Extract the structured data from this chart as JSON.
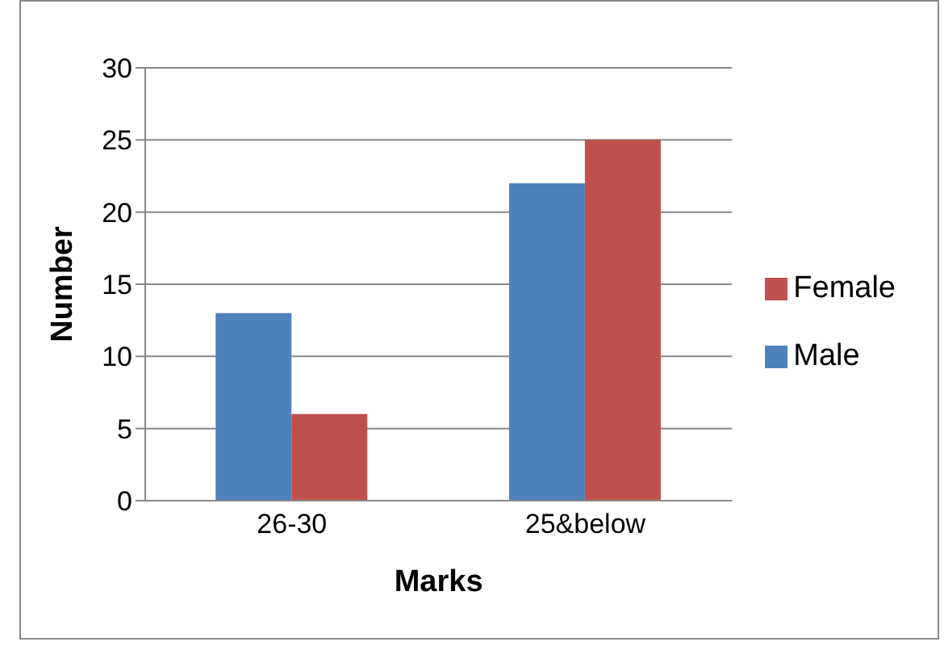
{
  "chart_data": {
    "type": "bar",
    "xlabel": "Marks",
    "ylabel": "Number",
    "categories": [
      "26-30",
      "25&below"
    ],
    "series": [
      {
        "name": "Male",
        "color": "#4f81bd",
        "values": [
          13,
          22
        ]
      },
      {
        "name": "Female",
        "color": "#c0504d",
        "values": [
          6,
          25
        ]
      }
    ],
    "ylim": [
      0,
      30
    ],
    "yticks": [
      0,
      5,
      10,
      15,
      20,
      25,
      30
    ],
    "grid": "y",
    "legend": "right"
  }
}
